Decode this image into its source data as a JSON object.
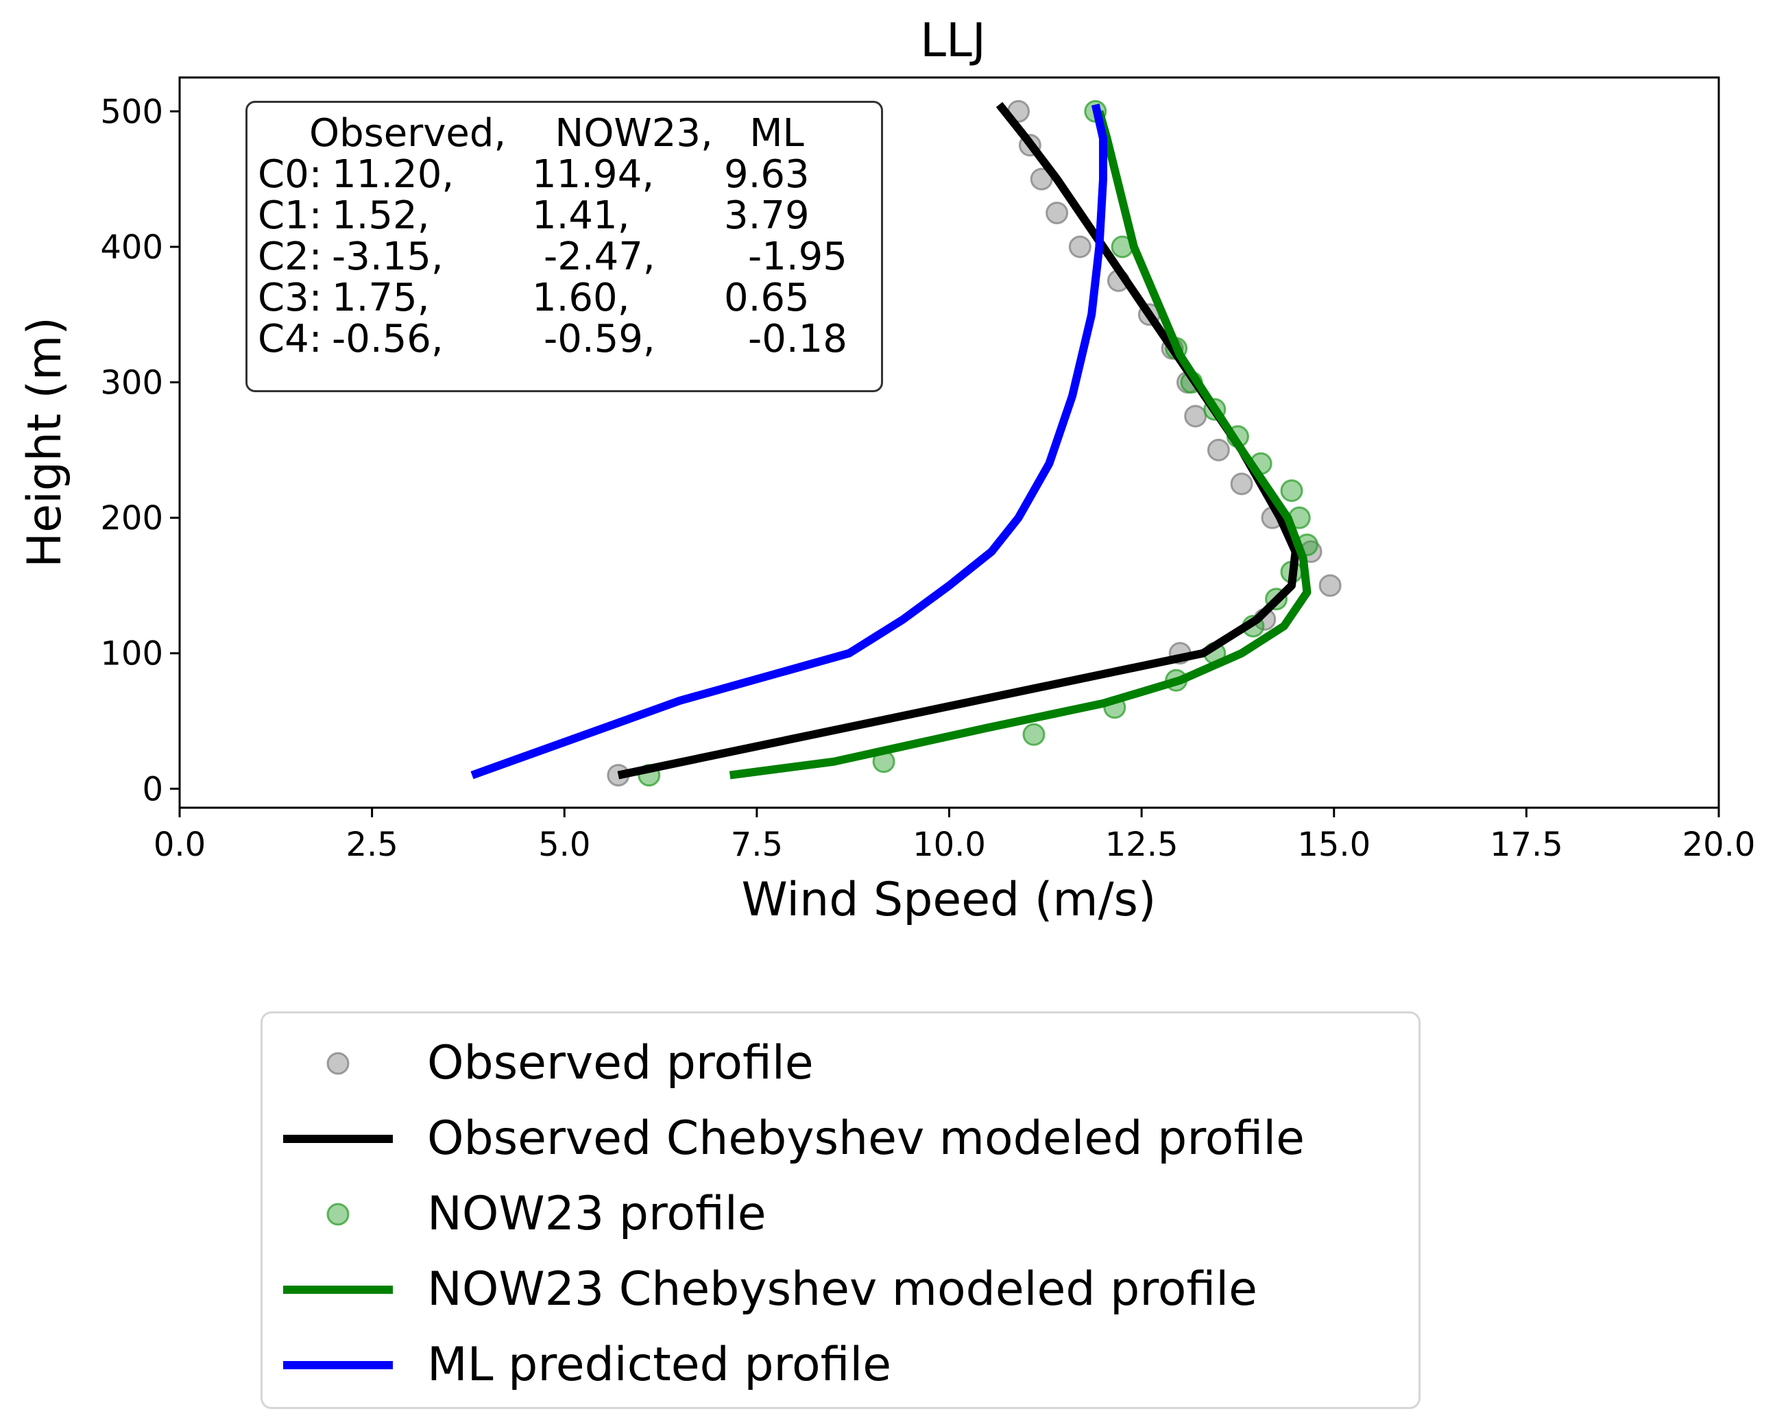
{
  "chart_data": {
    "type": "line",
    "title": "LLJ",
    "xlabel": "Wind Speed (m/s)",
    "ylabel": "Height (m)",
    "xlim": [
      0,
      20
    ],
    "ylim": [
      -14,
      525
    ],
    "xticks": [
      "0.0",
      "2.5",
      "5.0",
      "7.5",
      "10.0",
      "12.5",
      "15.0",
      "17.5",
      "20.0"
    ],
    "yticks": [
      "0",
      "100",
      "200",
      "300",
      "400",
      "500"
    ],
    "grid": false,
    "legend_placement": "below",
    "series": [
      {
        "name": "Observed profile",
        "kind": "scatter",
        "color": "#808080",
        "points": [
          [
            5.7,
            10
          ],
          [
            10.9,
            500
          ],
          [
            11.05,
            475
          ],
          [
            11.2,
            450
          ],
          [
            11.4,
            425
          ],
          [
            11.7,
            400
          ],
          [
            12.2,
            375
          ],
          [
            12.6,
            350
          ],
          [
            12.9,
            325
          ],
          [
            13.1,
            300
          ],
          [
            13.2,
            275
          ],
          [
            13.5,
            250
          ],
          [
            13.8,
            225
          ],
          [
            14.2,
            200
          ],
          [
            14.7,
            175
          ],
          [
            14.95,
            150
          ],
          [
            14.1,
            125
          ],
          [
            13.0,
            100
          ]
        ]
      },
      {
        "name": "Observed Chebyshev modeled profile",
        "kind": "line",
        "color": "#000000",
        "points": [
          [
            5.7,
            10
          ],
          [
            13.3,
            100
          ],
          [
            14.0,
            125
          ],
          [
            14.45,
            150
          ],
          [
            14.5,
            175
          ],
          [
            14.3,
            200
          ],
          [
            13.8,
            250
          ],
          [
            13.2,
            300
          ],
          [
            12.6,
            350
          ],
          [
            12.0,
            400
          ],
          [
            11.4,
            450
          ],
          [
            11.0,
            480
          ],
          [
            10.65,
            505
          ]
        ]
      },
      {
        "name": "NOW23 profile",
        "kind": "scatter",
        "color": "#2ca02c",
        "points": [
          [
            6.1,
            10
          ],
          [
            9.15,
            20
          ],
          [
            11.1,
            40
          ],
          [
            12.15,
            60
          ],
          [
            12.95,
            80
          ],
          [
            13.45,
            100
          ],
          [
            13.95,
            120
          ],
          [
            14.25,
            140
          ],
          [
            14.45,
            160
          ],
          [
            14.65,
            180
          ],
          [
            14.55,
            200
          ],
          [
            14.45,
            220
          ],
          [
            14.05,
            240
          ],
          [
            13.75,
            260
          ],
          [
            13.45,
            280
          ],
          [
            13.15,
            300
          ],
          [
            12.95,
            325
          ],
          [
            12.25,
            400
          ],
          [
            11.9,
            500
          ]
        ]
      },
      {
        "name": "NOW23 Chebyshev modeled profile",
        "kind": "line",
        "color": "#008000",
        "points": [
          [
            7.15,
            10
          ],
          [
            8.5,
            20
          ],
          [
            10.5,
            45
          ],
          [
            12.0,
            63
          ],
          [
            13.0,
            80
          ],
          [
            13.8,
            100
          ],
          [
            14.35,
            120
          ],
          [
            14.65,
            145
          ],
          [
            14.6,
            170
          ],
          [
            14.4,
            200
          ],
          [
            13.8,
            250
          ],
          [
            13.0,
            320
          ],
          [
            12.4,
            400
          ],
          [
            12.05,
            480
          ],
          [
            11.95,
            500
          ]
        ]
      },
      {
        "name": "ML predicted profile",
        "kind": "line",
        "color": "#0000ff",
        "points": [
          [
            3.8,
            10
          ],
          [
            6.5,
            65
          ],
          [
            8.7,
            100
          ],
          [
            9.4,
            125
          ],
          [
            10.0,
            150
          ],
          [
            10.55,
            175
          ],
          [
            10.9,
            200
          ],
          [
            11.3,
            240
          ],
          [
            11.6,
            290
          ],
          [
            11.85,
            350
          ],
          [
            11.95,
            400
          ],
          [
            12.0,
            450
          ],
          [
            12.0,
            480
          ],
          [
            11.9,
            505
          ]
        ]
      }
    ],
    "annotation_table": {
      "header": "Observed,    NOW23,   ML",
      "rows": [
        {
          "label": "C0:",
          "observed": "11.20,",
          "now23": "11.94,",
          "ml": "9.63"
        },
        {
          "label": "C1:",
          "observed": "1.52,",
          "now23": "1.41,",
          "ml": "3.79"
        },
        {
          "label": "C2:",
          "observed": "-3.15,",
          "now23": "-2.47,",
          "ml": "-1.95"
        },
        {
          "label": "C3:",
          "observed": "1.75,",
          "now23": "1.60,",
          "ml": "0.65"
        },
        {
          "label": "C4:",
          "observed": "-0.56,",
          "now23": "-0.59,",
          "ml": "-0.18"
        }
      ]
    }
  }
}
